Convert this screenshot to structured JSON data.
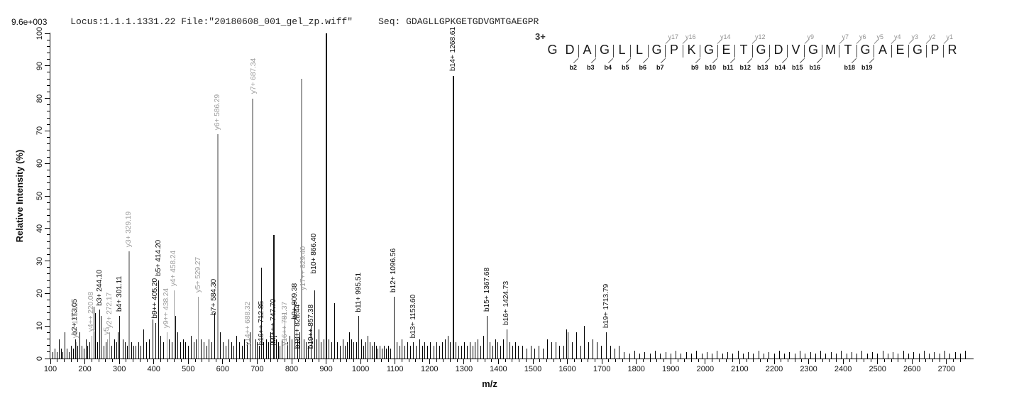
{
  "header": {
    "locus_file": "Locus:1.1.1.1331.22 File:\"20180608_001_gel_zp.wiff\"",
    "seq_label": "Seq:",
    "seq_value": "GDAGLLGPKGETGDVGMTGAEGPR",
    "intensity_full_scale": "9.6e+003"
  },
  "axes": {
    "x_label": "m/z",
    "y_label": "Relative  Intensity (%)",
    "x_min": 100,
    "x_max": 2760,
    "x_major": 100,
    "x_minor": 20,
    "x_tick_max": 2750,
    "x_label_max": 2700,
    "y_min": 0,
    "y_max": 100,
    "y_major": 10,
    "y_minor": 2
  },
  "colors": {
    "b_ion": "#111111",
    "y_ion": "#9e9e9e",
    "m_ion": "#111111",
    "base_peak": "#000000",
    "noise": "#000000",
    "axis": "#000000",
    "background": "#ffffff"
  },
  "precursor": {
    "charge": "3+"
  },
  "ladder": {
    "residues": [
      "G",
      "D",
      "A",
      "G",
      "L",
      "L",
      "G",
      "P",
      "K",
      "G",
      "E",
      "T",
      "G",
      "D",
      "V",
      "G",
      "M",
      "T",
      "G",
      "A",
      "E",
      "G",
      "P",
      "R"
    ],
    "y_ions": [
      "y17",
      "y16",
      "y14",
      "y12",
      "y9",
      "y7",
      "y6",
      "y5",
      "y4",
      "y3",
      "y2",
      "y1"
    ],
    "b_ions": [
      "b2",
      "b3",
      "b4",
      "b5",
      "b6",
      "b7",
      "b9",
      "b10",
      "b11",
      "b12",
      "b13",
      "b14",
      "b15",
      "b16",
      "b18",
      "b19"
    ]
  },
  "chart_data": {
    "type": "bar",
    "kind": "ms2-mass-spectrum",
    "xlabel": "m/z",
    "ylabel": "Relative  Intensity (%)",
    "xlim": [
      100,
      2760
    ],
    "ylim": [
      0,
      100
    ],
    "intensity_full_scale": "9.6e+003",
    "peaks": [
      {
        "mz": 173.05,
        "intensity": 6,
        "label": "b2+ 173.05",
        "series": "b"
      },
      {
        "mz": 175.12,
        "intensity": 5,
        "label": "y1+ 175.12",
        "series": "y"
      },
      {
        "mz": 220.08,
        "intensity": 7,
        "label": "y4++ 220.08",
        "series": "y"
      },
      {
        "mz": 244.1,
        "intensity": 15,
        "label": "b3+ 244.10",
        "series": "b"
      },
      {
        "mz": 265.5,
        "intensity": 6,
        "label": "y5",
        "series": "y"
      },
      {
        "mz": 272.17,
        "intensity": 8,
        "label": "y2+ 272.17",
        "series": "y"
      },
      {
        "mz": 301.11,
        "intensity": 13,
        "label": "b4+ 301.11",
        "series": "b"
      },
      {
        "mz": 329.19,
        "intensity": 33,
        "label": "y3+ 329.19",
        "series": "y"
      },
      {
        "mz": 405.2,
        "intensity": 11,
        "label": "b9++ 405.20",
        "series": "b"
      },
      {
        "mz": 414.2,
        "intensity": 24,
        "label": "b5+ 414.20",
        "series": "b"
      },
      {
        "mz": 438.24,
        "intensity": 8,
        "label": "y9++ 438.24",
        "series": "y"
      },
      {
        "mz": 458.24,
        "intensity": 21,
        "label": "y4+ 458.24",
        "series": "y"
      },
      {
        "mz": 529.27,
        "intensity": 19,
        "label": "y5+ 529.27",
        "series": "y"
      },
      {
        "mz": 584.3,
        "intensity": 12,
        "label": "b7+ 584.30",
        "series": "b",
        "dx": -4
      },
      {
        "mz": 586.29,
        "intensity": 69,
        "label": "y6+ 586.29",
        "series": "y"
      },
      {
        "mz": 687.34,
        "intensity": 80,
        "label": "y7+ 687.34",
        "series": "y",
        "dx": 2
      },
      {
        "mz": 688.32,
        "intensity": 22,
        "label": "y14++ 688.32",
        "series": "y",
        "lb": 4,
        "dx": -7
      },
      {
        "mz": 712.85,
        "intensity": 28,
        "label": "b16++ 712.85",
        "series": "b",
        "lb": 4
      },
      {
        "mz": 747.7,
        "intensity": 38,
        "label": "[M]+++ 747.70",
        "series": "M",
        "lb": 4
      },
      {
        "mz": 781.37,
        "intensity": 14,
        "label": "y16++ 781.37",
        "series": "y",
        "lb": 4
      },
      {
        "mz": 809.38,
        "intensity": 18,
        "label": "b9+ 809.38",
        "series": "b",
        "lb": 12
      },
      {
        "mz": 828.44,
        "intensity": 32,
        "label": "b18++ 828.44",
        "series": "b",
        "lb": 3,
        "dx": -5
      },
      {
        "mz": 829.4,
        "intensity": 86,
        "label": "y17++ 829.40",
        "series": "y",
        "lb": 21,
        "dx": 3
      },
      {
        "mz": 857.38,
        "intensity": 10,
        "label": "b19++ 857.38",
        "series": "b",
        "lb": 3
      },
      {
        "mz": 866.4,
        "intensity": 21,
        "label": "b10+ 866.40",
        "series": "b",
        "lb": 26
      },
      {
        "mz": 901.0,
        "intensity": 100,
        "label": "",
        "series": "base"
      },
      {
        "mz": 995.51,
        "intensity": 13,
        "label": "b11+ 995.51",
        "series": "b"
      },
      {
        "mz": 1096.56,
        "intensity": 19,
        "label": "b12+ 1096.56",
        "series": "b"
      },
      {
        "mz": 1153.6,
        "intensity": 5,
        "label": "b13+ 1153.60",
        "series": "b"
      },
      {
        "mz": 1268.61,
        "intensity": 87,
        "label": "b14+ 1268.61",
        "series": "b"
      },
      {
        "mz": 1367.68,
        "intensity": 13,
        "label": "b15+ 1367.68",
        "series": "b"
      },
      {
        "mz": 1424.73,
        "intensity": 9,
        "label": "b16+ 1424.73",
        "series": "b"
      },
      {
        "mz": 1713.79,
        "intensity": 8,
        "label": "b19+ 1713.79",
        "series": "b"
      }
    ],
    "noise_peaks": [
      [
        108,
        2
      ],
      [
        113,
        3
      ],
      [
        119,
        2
      ],
      [
        125,
        6
      ],
      [
        131,
        3
      ],
      [
        137,
        2
      ],
      [
        143,
        8
      ],
      [
        149,
        3
      ],
      [
        155,
        2
      ],
      [
        161,
        4
      ],
      [
        167,
        3
      ],
      [
        179,
        4
      ],
      [
        185,
        8
      ],
      [
        191,
        4
      ],
      [
        197,
        3
      ],
      [
        203,
        6
      ],
      [
        209,
        4
      ],
      [
        215,
        5
      ],
      [
        227,
        16
      ],
      [
        231,
        14
      ],
      [
        237,
        5
      ],
      [
        248,
        13
      ],
      [
        255,
        4
      ],
      [
        262,
        5
      ],
      [
        278,
        4
      ],
      [
        286,
        6
      ],
      [
        293,
        5
      ],
      [
        296,
        8
      ],
      [
        310,
        6
      ],
      [
        318,
        5
      ],
      [
        323,
        4
      ],
      [
        335,
        5
      ],
      [
        341,
        4
      ],
      [
        349,
        4
      ],
      [
        356,
        5
      ],
      [
        363,
        4
      ],
      [
        371,
        9
      ],
      [
        379,
        5
      ],
      [
        387,
        6
      ],
      [
        397,
        12
      ],
      [
        421,
        7
      ],
      [
        429,
        5
      ],
      [
        445,
        6
      ],
      [
        453,
        5
      ],
      [
        464,
        13
      ],
      [
        470,
        8
      ],
      [
        477,
        5
      ],
      [
        485,
        6
      ],
      [
        493,
        5
      ],
      [
        501,
        4
      ],
      [
        509,
        7
      ],
      [
        517,
        5
      ],
      [
        523,
        6
      ],
      [
        537,
        6
      ],
      [
        545,
        5
      ],
      [
        553,
        4
      ],
      [
        561,
        6
      ],
      [
        569,
        5
      ],
      [
        577,
        14
      ],
      [
        593,
        8
      ],
      [
        601,
        5
      ],
      [
        609,
        4
      ],
      [
        617,
        6
      ],
      [
        625,
        5
      ],
      [
        633,
        4
      ],
      [
        641,
        7
      ],
      [
        649,
        5
      ],
      [
        657,
        4
      ],
      [
        663,
        6
      ],
      [
        671,
        5
      ],
      [
        679,
        8
      ],
      [
        695,
        6
      ],
      [
        701,
        5
      ],
      [
        707,
        4
      ],
      [
        719,
        5
      ],
      [
        727,
        6
      ],
      [
        733,
        5
      ],
      [
        739,
        8
      ],
      [
        755,
        6
      ],
      [
        761,
        5
      ],
      [
        767,
        4
      ],
      [
        773,
        6
      ],
      [
        789,
        5
      ],
      [
        795,
        7
      ],
      [
        801,
        6
      ],
      [
        817,
        6
      ],
      [
        823,
        8
      ],
      [
        837,
        6
      ],
      [
        843,
        5
      ],
      [
        849,
        4
      ],
      [
        873,
        6
      ],
      [
        879,
        9
      ],
      [
        885,
        5
      ],
      [
        893,
        6
      ],
      [
        909,
        6
      ],
      [
        916,
        5
      ],
      [
        925,
        17
      ],
      [
        933,
        5
      ],
      [
        941,
        4
      ],
      [
        949,
        6
      ],
      [
        955,
        4
      ],
      [
        961,
        5
      ],
      [
        967,
        8
      ],
      [
        973,
        6
      ],
      [
        981,
        5
      ],
      [
        989,
        5
      ],
      [
        1003,
        6
      ],
      [
        1009,
        4
      ],
      [
        1015,
        5
      ],
      [
        1021,
        7
      ],
      [
        1027,
        5
      ],
      [
        1033,
        4
      ],
      [
        1039,
        5
      ],
      [
        1045,
        4
      ],
      [
        1051,
        3
      ],
      [
        1057,
        4
      ],
      [
        1063,
        3
      ],
      [
        1069,
        4
      ],
      [
        1075,
        3
      ],
      [
        1081,
        4
      ],
      [
        1087,
        3
      ],
      [
        1105,
        5
      ],
      [
        1113,
        4
      ],
      [
        1121,
        6
      ],
      [
        1129,
        4
      ],
      [
        1137,
        5
      ],
      [
        1145,
        4
      ],
      [
        1161,
        4
      ],
      [
        1171,
        6
      ],
      [
        1179,
        4
      ],
      [
        1187,
        5
      ],
      [
        1195,
        4
      ],
      [
        1203,
        5
      ],
      [
        1213,
        4
      ],
      [
        1221,
        5
      ],
      [
        1229,
        4
      ],
      [
        1237,
        5
      ],
      [
        1245,
        6
      ],
      [
        1253,
        7
      ],
      [
        1261,
        5
      ],
      [
        1277,
        5
      ],
      [
        1285,
        4
      ],
      [
        1293,
        4
      ],
      [
        1301,
        5
      ],
      [
        1309,
        4
      ],
      [
        1317,
        5
      ],
      [
        1325,
        4
      ],
      [
        1333,
        5
      ],
      [
        1341,
        6
      ],
      [
        1349,
        4
      ],
      [
        1357,
        7
      ],
      [
        1375,
        5
      ],
      [
        1383,
        4
      ],
      [
        1391,
        6
      ],
      [
        1399,
        5
      ],
      [
        1407,
        4
      ],
      [
        1415,
        6
      ],
      [
        1433,
        5
      ],
      [
        1441,
        4
      ],
      [
        1449,
        5
      ],
      [
        1457,
        4
      ],
      [
        1470,
        4
      ],
      [
        1482,
        3
      ],
      [
        1494,
        4
      ],
      [
        1506,
        3
      ],
      [
        1518,
        4
      ],
      [
        1530,
        3
      ],
      [
        1542,
        6
      ],
      [
        1554,
        5
      ],
      [
        1566,
        5
      ],
      [
        1578,
        4
      ],
      [
        1590,
        4
      ],
      [
        1598,
        9
      ],
      [
        1602,
        8
      ],
      [
        1614,
        5
      ],
      [
        1626,
        8
      ],
      [
        1638,
        4
      ],
      [
        1650,
        10
      ],
      [
        1662,
        5
      ],
      [
        1674,
        6
      ],
      [
        1686,
        5
      ],
      [
        1698,
        4
      ],
      [
        1726,
        4
      ],
      [
        1738,
        3
      ],
      [
        1750,
        4
      ]
    ],
    "baseline_noise": {
      "from": 1765,
      "to": 2755,
      "step": 15,
      "heights": [
        2,
        1.5,
        2.5,
        1.5
      ]
    }
  }
}
